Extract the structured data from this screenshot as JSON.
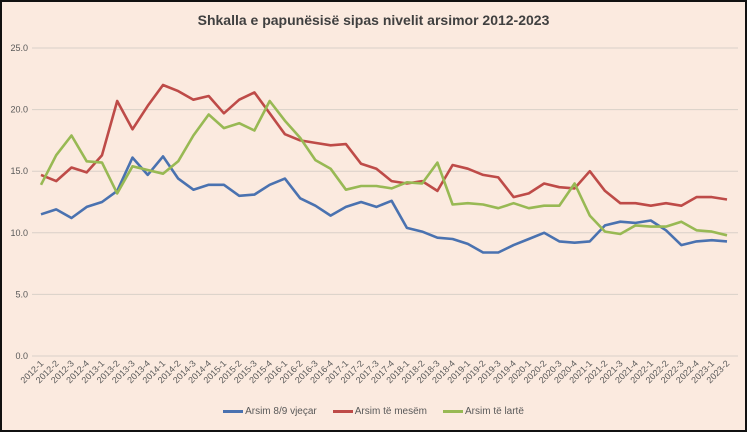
{
  "chart_data": {
    "type": "line",
    "title": "Shkalla e papunësisë sipas nivelit arsimor 2012-2023",
    "xlabel": "",
    "ylabel": "",
    "ylim": [
      0,
      25
    ],
    "yticks": [
      "0.0",
      "5.0",
      "10.0",
      "15.0",
      "20.0",
      "25.0"
    ],
    "grid": true,
    "legend_position": "bottom",
    "x": [
      "2012-1",
      "2012-2",
      "2012-3",
      "2012-4",
      "2013-1",
      "2013-2",
      "2013-3",
      "2013-4",
      "2014-1",
      "2014-2",
      "2014-3",
      "2014-4",
      "2015-1",
      "2015-2",
      "2015-3",
      "2015-4",
      "2016-1",
      "2016-2",
      "2016-3",
      "2016-4",
      "2017-1",
      "2017-2",
      "2017-3",
      "2017-4",
      "2018-1",
      "2018-2",
      "2018-3",
      "2018-4",
      "2019-1",
      "2019-2",
      "2019-3",
      "2019-4",
      "2020-1",
      "2020-2",
      "2020-3",
      "2020-4",
      "2021-1",
      "2021-2",
      "2021-3",
      "2021-4",
      "2022-1",
      "2022-2",
      "2022-3",
      "2022-4",
      "2023-1",
      "2023-2"
    ],
    "series": [
      {
        "name": "Arsim 8/9 vjeçar",
        "color": "#4a72b0",
        "values": [
          11.5,
          11.9,
          11.2,
          12.1,
          12.5,
          13.4,
          16.1,
          14.7,
          16.2,
          14.4,
          13.5,
          13.9,
          13.9,
          13.0,
          13.1,
          13.9,
          14.4,
          12.8,
          12.2,
          11.4,
          12.1,
          12.5,
          12.1,
          12.6,
          10.4,
          10.1,
          9.6,
          9.5,
          9.1,
          8.4,
          8.4,
          9.0,
          9.5,
          10.0,
          9.3,
          9.2,
          9.3,
          10.6,
          10.9,
          10.8,
          11.0,
          10.2,
          9.0,
          9.3,
          9.4,
          9.3
        ]
      },
      {
        "name": "Arsim të mesëm",
        "color": "#be4b48",
        "values": [
          14.7,
          14.2,
          15.3,
          14.9,
          16.3,
          20.7,
          18.4,
          20.3,
          22.0,
          21.5,
          20.8,
          21.1,
          19.7,
          20.8,
          21.4,
          19.7,
          18.0,
          17.5,
          17.3,
          17.1,
          17.2,
          15.6,
          15.2,
          14.2,
          14.0,
          14.2,
          13.4,
          15.5,
          15.2,
          14.7,
          14.5,
          12.9,
          13.2,
          14.0,
          13.7,
          13.6,
          15.0,
          13.4,
          12.4,
          12.4,
          12.2,
          12.4,
          12.2,
          12.9,
          12.9,
          12.7
        ]
      },
      {
        "name": "Arsim të lartë",
        "color": "#98b954",
        "values": [
          13.9,
          16.3,
          17.9,
          15.8,
          15.7,
          13.2,
          15.4,
          15.1,
          14.8,
          15.8,
          17.9,
          19.6,
          18.5,
          18.9,
          18.3,
          20.7,
          19.1,
          17.7,
          15.9,
          15.2,
          13.5,
          13.8,
          13.8,
          13.6,
          14.1,
          14.0,
          15.7,
          12.3,
          12.4,
          12.3,
          12.0,
          12.4,
          12.0,
          12.2,
          12.2,
          14.0,
          11.4,
          10.1,
          9.9,
          10.6,
          10.5,
          10.5,
          10.9,
          10.2,
          10.1,
          9.8
        ]
      }
    ]
  }
}
